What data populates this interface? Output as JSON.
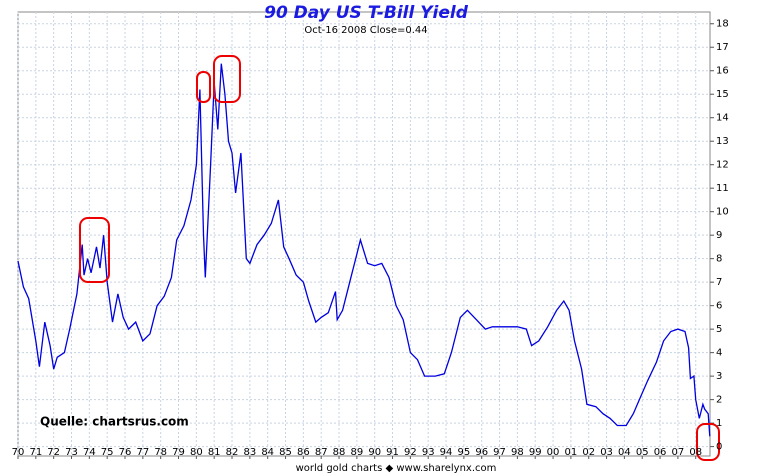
{
  "chart_data": {
    "type": "line",
    "title": "90 Day US T-Bill Yield",
    "subtitle": "Oct-16 2008  Close=0.44",
    "annotation": "Quelle: chartsrus.com",
    "footer": "world gold charts ◆ www.sharelynx.com",
    "color": "#0000e0",
    "grid": true,
    "xlim": [
      1970,
      2008.8
    ],
    "ylim": [
      -0.4,
      18.5
    ],
    "yticks": [
      0,
      1,
      2,
      3,
      4,
      5,
      6,
      7,
      8,
      9,
      10,
      11,
      12,
      13,
      14,
      15,
      16,
      17,
      18
    ],
    "xticks": [
      {
        "value": 1970,
        "label": "70"
      },
      {
        "value": 1971,
        "label": "71"
      },
      {
        "value": 1972,
        "label": "72"
      },
      {
        "value": 1973,
        "label": "73"
      },
      {
        "value": 1974,
        "label": "74"
      },
      {
        "value": 1975,
        "label": "75"
      },
      {
        "value": 1976,
        "label": "76"
      },
      {
        "value": 1977,
        "label": "77"
      },
      {
        "value": 1978,
        "label": "78"
      },
      {
        "value": 1979,
        "label": "79"
      },
      {
        "value": 1980,
        "label": "80"
      },
      {
        "value": 1981,
        "label": "81"
      },
      {
        "value": 1982,
        "label": "82"
      },
      {
        "value": 1983,
        "label": "83"
      },
      {
        "value": 1984,
        "label": "84"
      },
      {
        "value": 1985,
        "label": "85"
      },
      {
        "value": 1986,
        "label": "86"
      },
      {
        "value": 1987,
        "label": "87"
      },
      {
        "value": 1988,
        "label": "88"
      },
      {
        "value": 1989,
        "label": "89"
      },
      {
        "value": 1990,
        "label": "90"
      },
      {
        "value": 1991,
        "label": "91"
      },
      {
        "value": 1992,
        "label": "92"
      },
      {
        "value": 1993,
        "label": "93"
      },
      {
        "value": 1994,
        "label": "94"
      },
      {
        "value": 1995,
        "label": "95"
      },
      {
        "value": 1996,
        "label": "96"
      },
      {
        "value": 1997,
        "label": "97"
      },
      {
        "value": 1998,
        "label": "98"
      },
      {
        "value": 1999,
        "label": "99"
      },
      {
        "value": 2000,
        "label": "00"
      },
      {
        "value": 2001,
        "label": "01"
      },
      {
        "value": 2002,
        "label": "02"
      },
      {
        "value": 2003,
        "label": "03"
      },
      {
        "value": 2004,
        "label": "04"
      },
      {
        "value": 2005,
        "label": "05"
      },
      {
        "value": 2006,
        "label": "06"
      },
      {
        "value": 2007,
        "label": "07"
      },
      {
        "value": 2008,
        "label": "08"
      }
    ],
    "x": [
      1970.0,
      1970.3,
      1970.6,
      1971.0,
      1971.2,
      1971.5,
      1971.8,
      1972.0,
      1972.2,
      1972.6,
      1972.9,
      1973.3,
      1973.6,
      1973.7,
      1973.9,
      1974.1,
      1974.4,
      1974.6,
      1974.8,
      1975.0,
      1975.3,
      1975.6,
      1975.9,
      1976.2,
      1976.6,
      1977.0,
      1977.4,
      1977.8,
      1978.2,
      1978.6,
      1978.9,
      1979.3,
      1979.7,
      1980.0,
      1980.2,
      1980.4,
      1980.5,
      1980.8,
      1981.0,
      1981.2,
      1981.4,
      1981.6,
      1981.8,
      1982.0,
      1982.2,
      1982.5,
      1982.8,
      1983.0,
      1983.4,
      1983.8,
      1984.2,
      1984.6,
      1984.9,
      1985.2,
      1985.6,
      1986.0,
      1986.3,
      1986.7,
      1987.0,
      1987.4,
      1987.8,
      1987.9,
      1988.2,
      1988.6,
      1989.0,
      1989.2,
      1989.6,
      1990.0,
      1990.4,
      1990.8,
      1991.2,
      1991.6,
      1992.0,
      1992.4,
      1992.8,
      1993.4,
      1993.9,
      1994.3,
      1994.8,
      1995.2,
      1995.7,
      1996.2,
      1996.6,
      1997.0,
      1997.5,
      1998.0,
      1998.5,
      1998.8,
      1999.2,
      1999.7,
      2000.2,
      2000.6,
      2000.9,
      2001.2,
      2001.6,
      2001.9,
      2002.4,
      2002.8,
      2003.2,
      2003.6,
      2004.1,
      2004.5,
      2004.9,
      2005.3,
      2005.8,
      2006.2,
      2006.6,
      2007.0,
      2007.4,
      2007.6,
      2007.7,
      2007.9,
      2008.0,
      2008.2,
      2008.4,
      2008.5,
      2008.7,
      2008.79
    ],
    "values": [
      7.9,
      6.8,
      6.3,
      4.5,
      3.4,
      5.3,
      4.3,
      3.3,
      3.8,
      4.0,
      5.0,
      6.5,
      8.6,
      7.3,
      8.0,
      7.4,
      8.5,
      7.6,
      9.0,
      7.0,
      5.3,
      6.5,
      5.5,
      5.0,
      5.3,
      4.5,
      4.8,
      6.0,
      6.4,
      7.2,
      8.8,
      9.4,
      10.5,
      12.0,
      15.2,
      9.0,
      7.2,
      12.0,
      15.5,
      13.5,
      16.3,
      15.0,
      13.0,
      12.5,
      10.8,
      12.5,
      8.0,
      7.8,
      8.6,
      9.0,
      9.5,
      10.5,
      8.5,
      8.0,
      7.3,
      7.0,
      6.2,
      5.3,
      5.5,
      5.7,
      6.6,
      5.4,
      5.8,
      7.0,
      8.2,
      8.8,
      7.8,
      7.7,
      7.8,
      7.2,
      6.0,
      5.4,
      4.0,
      3.7,
      3.0,
      3.0,
      3.1,
      4.0,
      5.5,
      5.8,
      5.4,
      5.0,
      5.1,
      5.1,
      5.1,
      5.1,
      5.0,
      4.3,
      4.5,
      5.1,
      5.8,
      6.2,
      5.8,
      4.5,
      3.3,
      1.8,
      1.7,
      1.4,
      1.2,
      0.9,
      0.9,
      1.4,
      2.1,
      2.8,
      3.6,
      4.5,
      4.9,
      5.0,
      4.9,
      4.2,
      2.9,
      3.0,
      2.0,
      1.2,
      1.8,
      1.6,
      1.4,
      0.44
    ]
  }
}
